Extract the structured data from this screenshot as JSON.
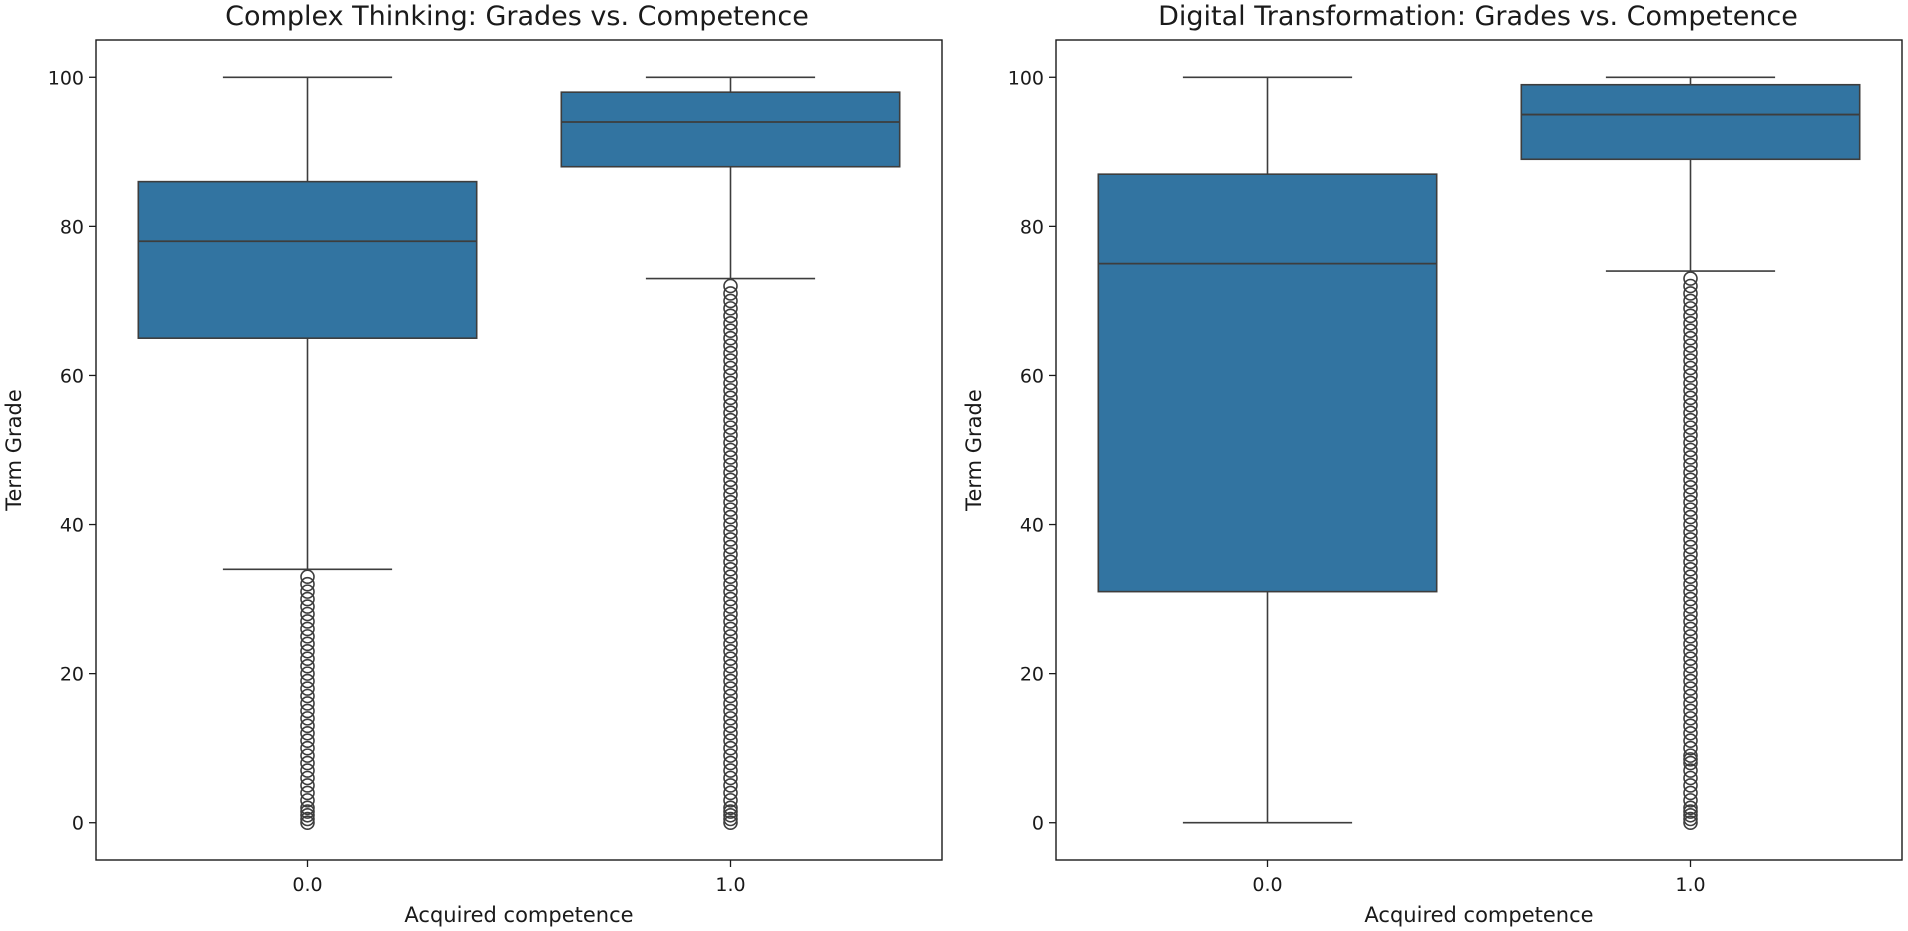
{
  "chart_data": [
    {
      "type": "box",
      "title": "Complex Thinking: Grades vs. Competence",
      "xlabel": "Acquired competence",
      "ylabel": "Term Grade",
      "ylim": [
        -5,
        105
      ],
      "yticks": [
        "0",
        "20",
        "40",
        "60",
        "80",
        "100"
      ],
      "grid": false,
      "box_color": "#3274a1",
      "line_color": "#3d3d3d",
      "boxes": [
        {
          "category": "0.0",
          "whisker_low": 34,
          "q1": 65,
          "median": 78,
          "q3": 86,
          "whisker_high": 100,
          "outliers": [
            0,
            0.5,
            1,
            1.5,
            2,
            3,
            4,
            5,
            6,
            7,
            8,
            9,
            10,
            11,
            12,
            13,
            14,
            15,
            16,
            17,
            18,
            19,
            20,
            21,
            22,
            23,
            24,
            25,
            26,
            27,
            28,
            29,
            30,
            31,
            32,
            33
          ]
        },
        {
          "category": "1.0",
          "whisker_low": 73,
          "q1": 88,
          "median": 94,
          "q3": 98,
          "whisker_high": 100,
          "outliers": [
            0,
            0.5,
            1,
            1.5,
            2,
            3,
            4,
            5,
            6,
            7,
            8,
            9,
            10,
            11,
            12,
            13,
            14,
            15,
            16,
            17,
            18,
            19,
            20,
            21,
            22,
            23,
            24,
            25,
            26,
            27,
            28,
            29,
            30,
            31,
            32,
            33,
            34,
            35,
            36,
            37,
            38,
            39,
            40,
            41,
            42,
            43,
            44,
            45,
            46,
            47,
            48,
            49,
            50,
            51,
            52,
            53,
            54,
            55,
            56,
            57,
            58,
            59,
            60,
            61,
            62,
            63,
            64,
            65,
            66,
            67,
            68,
            69,
            70,
            71,
            72
          ]
        }
      ]
    },
    {
      "type": "box",
      "title": "Digital Transformation: Grades vs. Competence",
      "xlabel": "Acquired competence",
      "ylabel": "Term Grade",
      "ylim": [
        -5,
        105
      ],
      "yticks": [
        "0",
        "20",
        "40",
        "60",
        "80",
        "100"
      ],
      "grid": false,
      "box_color": "#3274a1",
      "line_color": "#3d3d3d",
      "boxes": [
        {
          "category": "0.0",
          "whisker_low": 0,
          "q1": 31,
          "median": 75,
          "q3": 87,
          "whisker_high": 100,
          "outliers": []
        },
        {
          "category": "1.0",
          "whisker_low": 74,
          "q1": 89,
          "median": 95,
          "q3": 99,
          "whisker_high": 100,
          "outliers": [
            0,
            0.5,
            1,
            1.5,
            2,
            3,
            4,
            5,
            6,
            7,
            8,
            8.5,
            9,
            10,
            11,
            12,
            13,
            14,
            15,
            16,
            17,
            18,
            19,
            20,
            21,
            22,
            23,
            24,
            25,
            26,
            27,
            28,
            29,
            30,
            31,
            32,
            33,
            34,
            35,
            36,
            37,
            38,
            39,
            40,
            41,
            42,
            43,
            44,
            45,
            46,
            47,
            48,
            49,
            50,
            51,
            52,
            53,
            54,
            55,
            56,
            57,
            58,
            59,
            60,
            61,
            62,
            63,
            64,
            65,
            66,
            67,
            68,
            69,
            70,
            71,
            72,
            73
          ]
        }
      ]
    }
  ]
}
